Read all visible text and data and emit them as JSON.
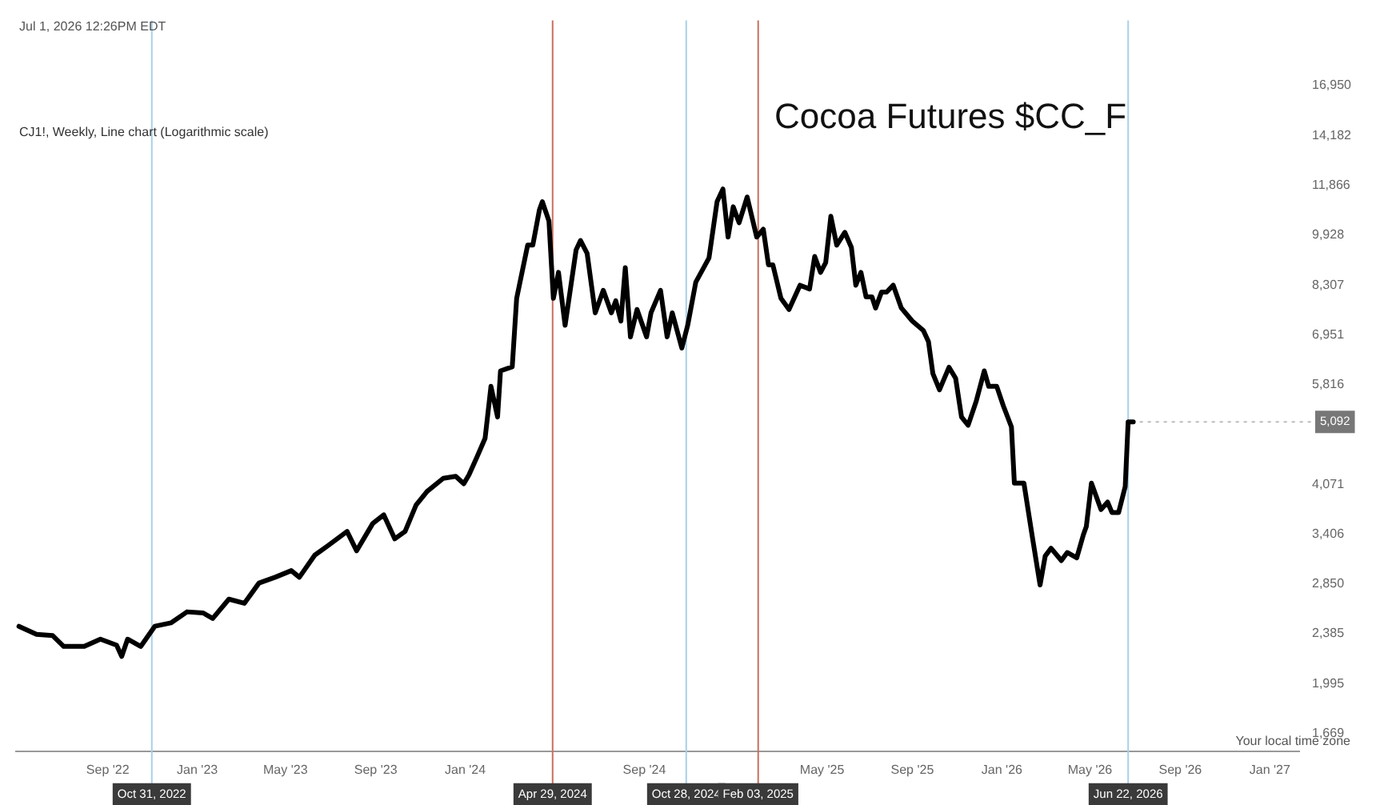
{
  "chart_data": {
    "type": "line",
    "title": "Cocoa Futures $CC_F",
    "subtitle": "CJ1!, Weekly, Line chart (Logarithmic scale)",
    "annotations": [
      "Jul 1, 2026 12:26PM EDT",
      "Your local time zone",
      {
        "text": "5,092",
        "x": "2026-06-29",
        "y": 5092
      }
    ],
    "x": [
      "2022-05-03",
      "2022-05-27",
      "2022-06-18",
      "2022-07-03",
      "2022-07-31",
      "2022-08-22",
      "2022-09-13",
      "2022-09-20",
      "2022-09-28",
      "2022-10-16",
      "2022-11-04",
      "2022-11-26",
      "2022-12-18",
      "2023-01-09",
      "2023-01-22",
      "2023-02-13",
      "2023-03-06",
      "2023-03-26",
      "2023-04-17",
      "2023-05-09",
      "2023-05-20",
      "2023-06-10",
      "2023-06-28",
      "2023-07-24",
      "2023-08-06",
      "2023-08-28",
      "2023-09-12",
      "2023-09-27",
      "2023-10-11",
      "2023-10-26",
      "2023-11-10",
      "2023-12-02",
      "2023-12-19",
      "2023-12-30",
      "2024-01-06",
      "2024-01-17",
      "2024-01-28",
      "2024-02-05",
      "2024-02-14",
      "2024-02-18",
      "2024-03-05",
      "2024-03-11",
      "2024-03-26",
      "2024-04-02",
      "2024-04-11",
      "2024-04-15",
      "2024-04-24",
      "2024-04-30",
      "2024-05-07",
      "2024-05-16",
      "2024-05-31",
      "2024-06-06",
      "2024-06-15",
      "2024-06-26",
      "2024-07-07",
      "2024-07-18",
      "2024-07-24",
      "2024-07-31",
      "2024-08-06",
      "2024-08-13",
      "2024-08-22",
      "2024-09-04",
      "2024-09-10",
      "2024-09-23",
      "2024-10-02",
      "2024-10-09",
      "2024-10-22",
      "2024-10-30",
      "2024-11-10",
      "2024-11-28",
      "2024-12-09",
      "2024-12-17",
      "2024-12-24",
      "2024-12-31",
      "2025-01-08",
      "2025-01-19",
      "2025-02-01",
      "2025-02-10",
      "2025-02-17",
      "2025-02-23",
      "2025-03-06",
      "2025-03-17",
      "2025-04-01",
      "2025-04-14",
      "2025-04-21",
      "2025-04-29",
      "2025-05-06",
      "2025-05-13",
      "2025-05-21",
      "2025-06-01",
      "2025-06-10",
      "2025-06-16",
      "2025-06-23",
      "2025-06-30",
      "2025-07-08",
      "2025-07-13",
      "2025-07-21",
      "2025-07-28",
      "2025-08-06",
      "2025-08-17",
      "2025-09-01",
      "2025-09-16",
      "2025-09-23",
      "2025-09-29",
      "2025-10-08",
      "2025-10-21",
      "2025-10-30",
      "2025-11-07",
      "2025-11-16",
      "2025-11-27",
      "2025-12-08",
      "2025-12-14",
      "2025-12-25",
      "2026-01-03",
      "2026-01-14",
      "2026-01-18",
      "2026-01-31",
      "2026-02-11",
      "2026-02-22",
      "2026-03-01",
      "2026-03-09",
      "2026-03-23",
      "2026-03-31",
      "2026-04-13",
      "2026-04-22",
      "2026-04-26",
      "2026-05-03",
      "2026-05-16",
      "2026-05-25",
      "2026-05-31",
      "2026-06-09",
      "2026-06-18",
      "2026-06-22",
      "2026-06-29"
    ],
    "series": [
      {
        "color": "#000000",
        "values": [
          2450,
          2380,
          2370,
          2280,
          2280,
          2340,
          2290,
          2200,
          2340,
          2280,
          2450,
          2480,
          2580,
          2570,
          2520,
          2700,
          2660,
          2860,
          2920,
          2990,
          2920,
          3160,
          3270,
          3440,
          3210,
          3540,
          3650,
          3350,
          3440,
          3780,
          3970,
          4160,
          4190,
          4080,
          4210,
          4490,
          4800,
          5780,
          5180,
          6110,
          6200,
          7920,
          9580,
          9580,
          10870,
          11190,
          10440,
          7920,
          8690,
          7190,
          9420,
          9740,
          9300,
          7520,
          8150,
          7520,
          7850,
          7300,
          8840,
          6900,
          7610,
          6900,
          7520,
          8150,
          6900,
          7520,
          6630,
          7190,
          8390,
          9150,
          11190,
          11710,
          9860,
          10990,
          10380,
          11380,
          9860,
          10140,
          8930,
          8930,
          7920,
          7610,
          8300,
          8190,
          9200,
          8690,
          9000,
          10620,
          9580,
          10030,
          9500,
          8300,
          8690,
          7960,
          7960,
          7650,
          8100,
          8100,
          8300,
          7650,
          7300,
          7060,
          6780,
          6050,
          5710,
          6190,
          5950,
          5180,
          5030,
          5480,
          6110,
          5780,
          5780,
          5390,
          5000,
          4090,
          4090,
          3400,
          2840,
          3150,
          3240,
          3100,
          3190,
          3130,
          3400,
          3500,
          4090,
          3720,
          3820,
          3680,
          3680,
          4040,
          5092,
          5092
        ]
      }
    ],
    "xlim": [
      "2022-04-29",
      "2027-02-10"
    ],
    "xticks": [
      {
        "value": "2022-09-01",
        "label": "Sep '22"
      },
      {
        "value": "2023-01-01",
        "label": "Jan '23"
      },
      {
        "value": "2023-05-01",
        "label": "May '23"
      },
      {
        "value": "2023-09-01",
        "label": "Sep '23"
      },
      {
        "value": "2024-01-01",
        "label": "Jan '24"
      },
      {
        "value": "2024-09-01",
        "label": "Sep '24"
      },
      {
        "value": "2025-05-01",
        "label": "May '25"
      },
      {
        "value": "2025-09-01",
        "label": "Sep '25"
      },
      {
        "value": "2026-01-01",
        "label": "Jan '26"
      },
      {
        "value": "2026-05-01",
        "label": "May '26"
      },
      {
        "value": "2026-09-01",
        "label": "Sep '26"
      },
      {
        "value": "2027-01-01",
        "label": "Jan '27"
      }
    ],
    "ylim": [
      1567,
      21400
    ],
    "log": "y",
    "yticks": [
      {
        "value": 1669,
        "label": "1,669"
      },
      {
        "value": 1995,
        "label": "1,995"
      },
      {
        "value": 2385,
        "label": "2,385"
      },
      {
        "value": 2850,
        "label": "2,850"
      },
      {
        "value": 3406,
        "label": "3,406"
      },
      {
        "value": 4071,
        "label": "4,071"
      },
      {
        "value": 5816,
        "label": "5,816"
      },
      {
        "value": 6951,
        "label": "6,951"
      },
      {
        "value": 8307,
        "label": "8,307"
      },
      {
        "value": 9928,
        "label": "9,928"
      },
      {
        "value": 11866,
        "label": "11,866"
      },
      {
        "value": 14182,
        "label": "14,182"
      },
      {
        "value": 16950,
        "label": "16,950"
      }
    ],
    "ref_lines": [
      {
        "axis": "x",
        "value": "2022-10-31",
        "label": "Oct 31, 2022",
        "color": "#a8d0e8"
      },
      {
        "axis": "x",
        "value": "2024-04-29",
        "label": "Apr 29, 2024",
        "color": "#c8705c"
      },
      {
        "axis": "x",
        "value": "2024-10-28",
        "label": "Oct 28, 2024",
        "color": "#a8d0e8"
      },
      {
        "axis": "x",
        "value": "2025-02-03",
        "label": "Feb 03, 2025",
        "color": "#c8705c"
      },
      {
        "axis": "x",
        "value": "2026-06-22",
        "label": "Jun 22, 2026",
        "color": "#a8d0e8"
      }
    ],
    "grid": false,
    "legend": false,
    "marker": "none",
    "line_style": "solid"
  }
}
